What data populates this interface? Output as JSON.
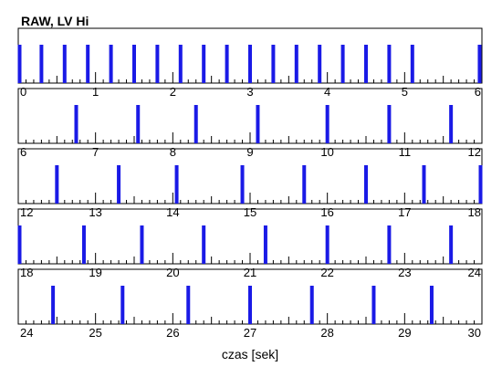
{
  "chart_data": {
    "type": "event-raster",
    "title": "RAW, LV Hi",
    "xlabel": "czas [sek]",
    "xlim": [
      0,
      30
    ],
    "seconds_per_row": 6,
    "major_tick_step": 1,
    "minor_tick_step": 0.1,
    "grid": false,
    "series": [
      {
        "color": "#1a1ae6",
        "events": [
          0.0,
          0.3,
          0.6,
          0.9,
          1.2,
          1.5,
          1.8,
          2.1,
          2.4,
          2.7,
          3.0,
          3.3,
          3.6,
          3.9,
          4.2,
          4.5,
          4.8,
          5.1,
          5.97,
          6.75,
          7.55,
          8.3,
          9.1,
          10.0,
          10.8,
          11.6,
          12.5,
          13.3,
          14.05,
          14.9,
          15.7,
          16.5,
          17.25,
          18.0,
          18.85,
          19.6,
          20.4,
          21.2,
          22.0,
          22.8,
          23.6,
          24.45,
          25.35,
          26.2,
          27.0,
          27.8,
          28.6,
          29.35
        ]
      }
    ]
  }
}
